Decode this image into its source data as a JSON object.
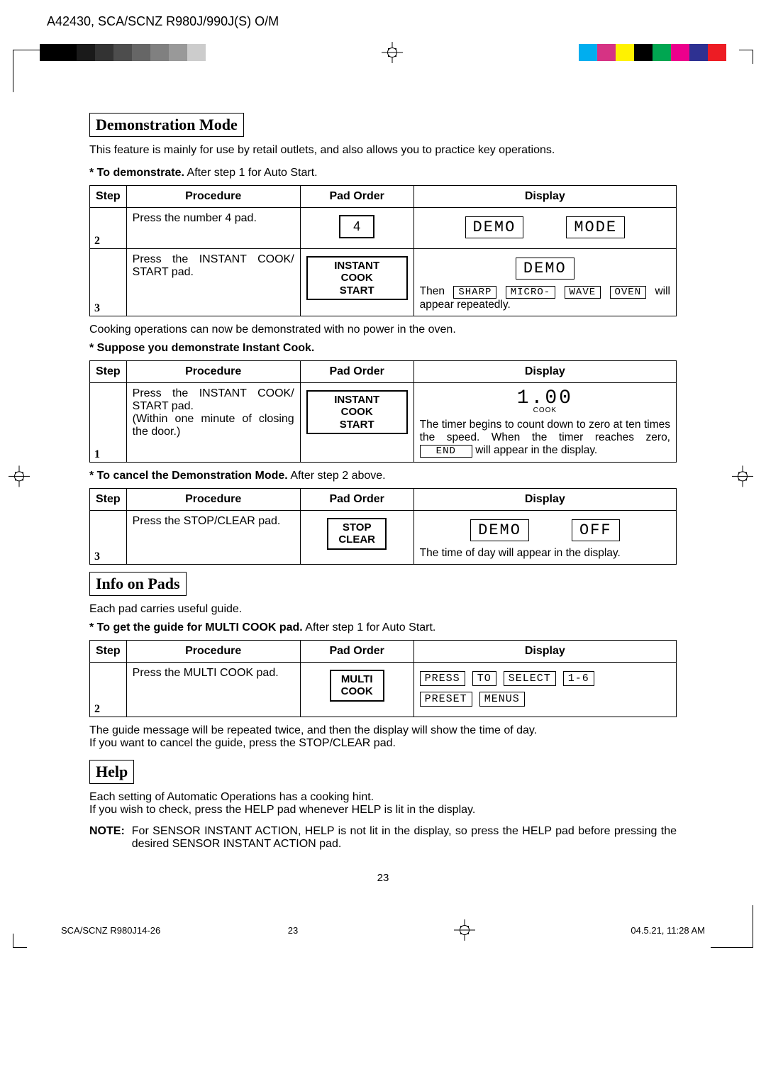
{
  "header": "A42430, SCA/SCNZ R980J/990J(S) O/M",
  "gray_shades": [
    "#000000",
    "#000000",
    "#1a1a1a",
    "#333333",
    "#4d4d4d",
    "#666666",
    "#808080",
    "#999999",
    "#cccccc"
  ],
  "color_swatches": [
    "#00aeef",
    "#d63384",
    "#fff200",
    "#000000",
    "#00a651",
    "#ec008c",
    "#2e3192",
    "#ed1c24"
  ],
  "sec1": {
    "title": "Demonstration Mode",
    "intro": "This feature is mainly for use by retail outlets, and also allows you to practice key operations.",
    "note1_b": "* To demonstrate.",
    "note1_r": "After step 1 for Auto Start.",
    "cols": {
      "step": "Step",
      "proc": "Procedure",
      "pad": "Pad Order",
      "disp": "Display"
    },
    "r2": {
      "step": "2",
      "proc": "Press the number 4 pad.",
      "pad": "4",
      "lcd1": "DEMO",
      "lcd2": "MODE"
    },
    "r3": {
      "step": "3",
      "proc": "Press the INSTANT COOK/ START pad.",
      "padL1": "INSTANT COOK",
      "padL2": "START",
      "lcd1": "DEMO",
      "then": "Then",
      "s1": "SHARP",
      "s2": "MICRO-",
      "s3": "WAVE",
      "s4": "OVEN",
      "tail": "will appear repeatedly."
    },
    "after1": "Cooking operations can now be demonstrated with no power in the oven.",
    "note2_b": "* Suppose you demonstrate Instant Cook.",
    "r1b": {
      "step": "1",
      "proc": "Press the INSTANT COOK/ START pad.\n(Within one minute of closing the door.)",
      "padL1": "INSTANT COOK",
      "padL2": "START",
      "bignum": "1.00",
      "cook": "COOK",
      "body": "The timer begins to count down to zero at ten times the speed. When the timer reaches zero,",
      "end": "END",
      "tail": "will appear in the display."
    },
    "note3_b": "* To cancel the Demonstration Mode.",
    "note3_r": "After step 2 above.",
    "r3c": {
      "step": "3",
      "proc": "Press the STOP/CLEAR pad.",
      "padL1": "STOP",
      "padL2": "CLEAR",
      "lcd1": "DEMO",
      "lcd2": "OFF",
      "body": "The time of day will appear in the display."
    }
  },
  "sec2": {
    "title": "Info on Pads",
    "intro": "Each pad carries useful guide.",
    "note_b": "* To get the guide for MULTI COOK pad.",
    "note_r": "After step 1 for Auto Start.",
    "r2": {
      "step": "2",
      "proc": "Press the MULTI COOK pad.",
      "padL1": "MULTI",
      "padL2": "COOK",
      "w": [
        "PRESS",
        "TO",
        "SELECT",
        "1-6",
        "PRESET",
        "MENUS"
      ]
    },
    "after1": "The guide message will be repeated twice, and then the display will show the time of day.",
    "after2": "If you want to cancel the guide, press the STOP/CLEAR pad."
  },
  "sec3": {
    "title": "Help",
    "l1": "Each setting of Automatic Operations has a cooking hint.",
    "l2": "If you wish to check, press the HELP pad whenever HELP is lit in the display.",
    "note_label": "NOTE:",
    "note_body": "For SENSOR INSTANT ACTION, HELP is not lit in the display, so press the HELP pad before pressing the desired SENSOR INSTANT ACTION pad."
  },
  "page_num": "23",
  "footer": {
    "left": "SCA/SCNZ R980J14-26",
    "mid": "23",
    "right": "04.5.21, 11:28 AM"
  }
}
